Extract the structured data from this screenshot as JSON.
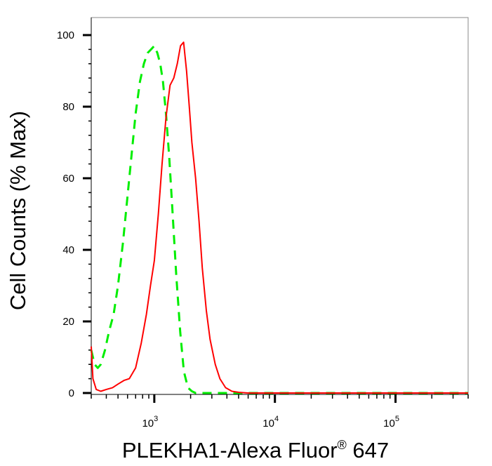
{
  "chart_data": {
    "type": "line",
    "title": "",
    "xlabel": "PLEKHA1-Alexa Fluor",
    "xlabel_superscript": "®",
    "xlabel_suffix": " 647",
    "ylabel": "Cell Counts (% Max)",
    "xscale": "log",
    "xlim": [
      300,
      400000
    ],
    "ylim": [
      0,
      100
    ],
    "y_ticks": [
      0,
      20,
      40,
      60,
      80,
      100
    ],
    "x_ticks": [
      {
        "value": 1000,
        "base": "10",
        "exp": "3"
      },
      {
        "value": 10000,
        "base": "10",
        "exp": "4"
      },
      {
        "value": 100000,
        "base": "10",
        "exp": "5"
      }
    ],
    "grid": false,
    "legend": "none",
    "series": [
      {
        "color": "#00ee00",
        "style": "dashed",
        "x": [
          300,
          320,
          340,
          360,
          390,
          420,
          460,
          500,
          550,
          600,
          650,
          700,
          760,
          820,
          880,
          940,
          1000,
          1060,
          1120,
          1180,
          1250,
          1330,
          1420,
          1520,
          1640,
          1760,
          1900,
          2050,
          2200,
          2500,
          3000,
          4000,
          6000,
          10000,
          30000,
          100000,
          400000
        ],
        "y": [
          12,
          8,
          7,
          8,
          12,
          17,
          22,
          30,
          42,
          55,
          67,
          78,
          87,
          92,
          95,
          96,
          97,
          95,
          92,
          87,
          78,
          66,
          50,
          33,
          17,
          6,
          1.5,
          0.5,
          0,
          0,
          0,
          0,
          0,
          0,
          0,
          0,
          0
        ]
      },
      {
        "color": "#ff0000",
        "style": "solid",
        "x": [
          300,
          310,
          330,
          360,
          400,
          450,
          500,
          560,
          620,
          700,
          780,
          860,
          930,
          1000,
          1080,
          1160,
          1250,
          1350,
          1450,
          1550,
          1650,
          1750,
          1850,
          1950,
          2050,
          2200,
          2350,
          2500,
          2700,
          2900,
          3200,
          3500,
          3900,
          4400,
          5000,
          6000,
          8000,
          20000,
          100000,
          400000
        ],
        "y": [
          13,
          4,
          1,
          0.5,
          1,
          1.5,
          2.5,
          3.5,
          4,
          7,
          14,
          22,
          30,
          37,
          50,
          64,
          77,
          86,
          88,
          92,
          97,
          98,
          90,
          80,
          70,
          60,
          48,
          35,
          23,
          15,
          8,
          4,
          1.5,
          0.5,
          0.2,
          0,
          0,
          0,
          0,
          0
        ]
      }
    ]
  }
}
